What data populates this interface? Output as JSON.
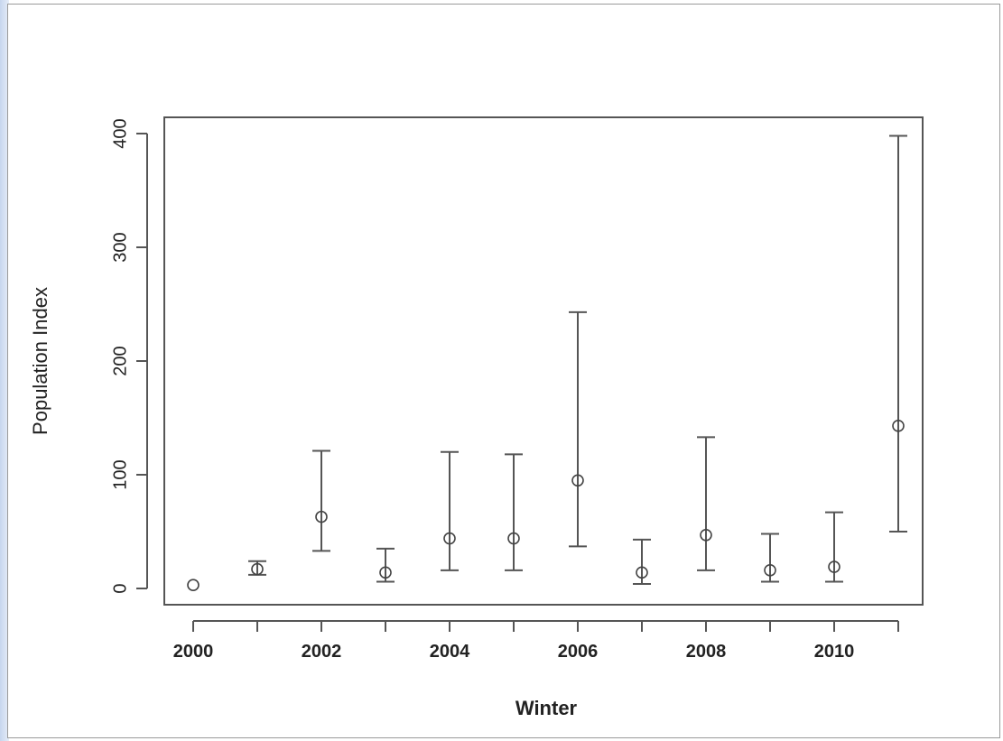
{
  "chart_data": {
    "type": "scatter",
    "xlabel": "Winter",
    "ylabel": "Population Index",
    "xlim": [
      2000,
      2011
    ],
    "ylim": [
      0,
      400
    ],
    "x_ticks": [
      "2000",
      "2002",
      "2004",
      "2006",
      "2008",
      "2010"
    ],
    "y_ticks": [
      "0",
      "100",
      "200",
      "300",
      "400"
    ],
    "grid": false,
    "points": [
      {
        "x": 2000,
        "y": 3
      },
      {
        "x": 2001,
        "y": 17,
        "lower": 12,
        "upper": 24
      },
      {
        "x": 2002,
        "y": 63,
        "lower": 33,
        "upper": 121
      },
      {
        "x": 2003,
        "y": 14,
        "lower": 6,
        "upper": 35
      },
      {
        "x": 2004,
        "y": 44,
        "lower": 16,
        "upper": 120
      },
      {
        "x": 2005,
        "y": 44,
        "lower": 16,
        "upper": 118
      },
      {
        "x": 2006,
        "y": 95,
        "lower": 37,
        "upper": 243
      },
      {
        "x": 2007,
        "y": 14,
        "lower": 4,
        "upper": 43
      },
      {
        "x": 2008,
        "y": 47,
        "lower": 16,
        "upper": 133
      },
      {
        "x": 2009,
        "y": 16,
        "lower": 6,
        "upper": 48
      },
      {
        "x": 2010,
        "y": 19,
        "lower": 6,
        "upper": 67
      },
      {
        "x": 2011,
        "y": 143,
        "lower": 50,
        "upper": 398
      }
    ]
  }
}
